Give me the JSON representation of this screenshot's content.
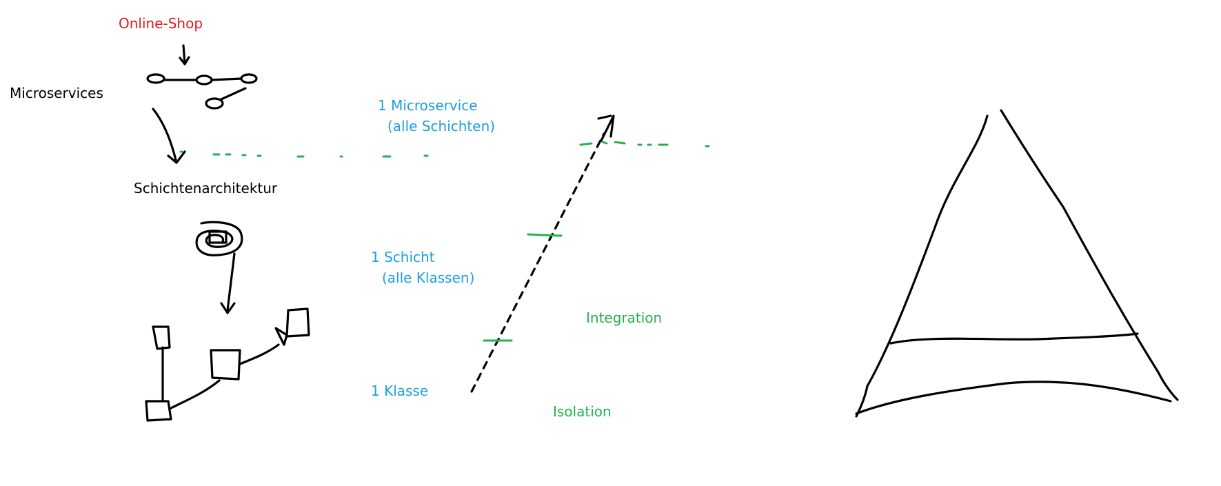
{
  "labels": {
    "online_shop": "Online-Shop",
    "microservices": "Microservices",
    "schichtenarchitektur": "Schichtenarchitektur",
    "one_microservice": "1 Microservice",
    "alle_schichten": "(alle Schichten)",
    "one_schicht": "1 Schicht",
    "alle_klassen": "(alle Klassen)",
    "one_klasse": "1 Klasse",
    "integration": "Integration",
    "isolation": "Isolation"
  },
  "colors": {
    "red": "#e8151f",
    "blue": "#1a9fe0",
    "green": "#22b24c",
    "black": "#000000"
  }
}
